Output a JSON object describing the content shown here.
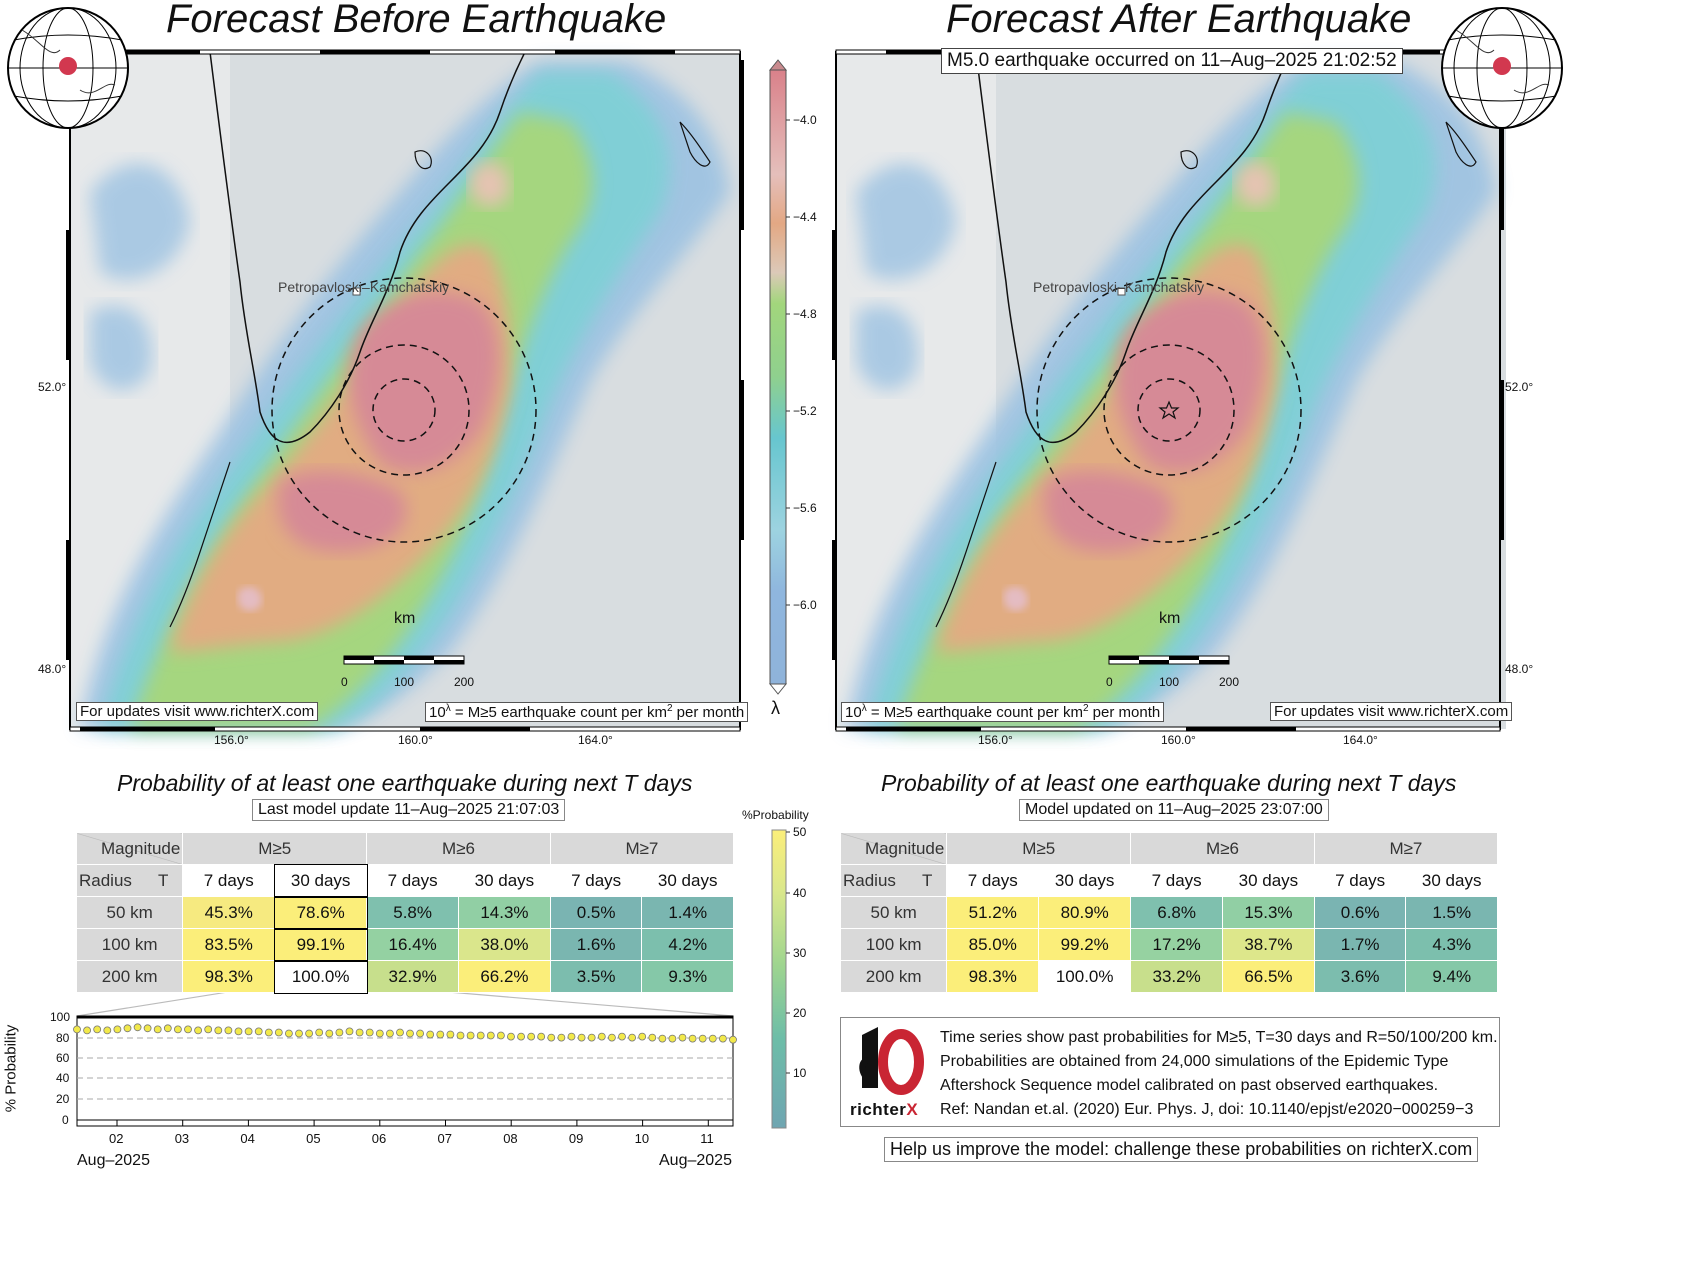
{
  "left": {
    "title": "Forecast Before Earthquake",
    "updates": "For updates visit www.richterX.com",
    "legend_note": "10λ = M≥5 earthquake count per km2 per month",
    "legend_base": "10",
    "legend_sup": "λ",
    "legend_rest_a": " = M≥5 earthquake count per km",
    "legend_sup2": "2",
    "legend_rest_b": " per month",
    "city": "Petropavloski–Kamchatskiy",
    "km_label": "km",
    "scale_ticks": [
      "0",
      "100",
      "200"
    ],
    "lat_ticks": [
      "52.0°",
      "48.0°"
    ],
    "lon_ticks": [
      "156.0°",
      "160.0°",
      "164.0°"
    ],
    "prob_title": "Probability of at least one earthquake during next T days",
    "prob_subtitle": "Last model update 11–Aug–2025 21:07:03"
  },
  "right": {
    "title": "Forecast After Earthquake",
    "event": "M5.0 earthquake occurred on 11–Aug–2025 21:02:52",
    "updates": "For updates visit www.richterX.com",
    "city": "Petropavloski–Kamchatskiy",
    "km_label": "km",
    "scale_ticks": [
      "0",
      "100",
      "200"
    ],
    "lat_ticks": [
      "52.0°",
      "48.0°"
    ],
    "lon_ticks": [
      "156.0°",
      "160.0°",
      "164.0°"
    ],
    "prob_title": "Probability of at least one earthquake during next T days",
    "prob_subtitle": "Model updated on 11–Aug–2025 23:07:00"
  },
  "colorbar": {
    "ticks": [
      "−4.0",
      "−4.4",
      "−4.8",
      "−5.2",
      "−5.6",
      "−6.0"
    ],
    "label": "λ"
  },
  "prob_colorbar": {
    "label": "%Probability",
    "ticks": [
      "50",
      "40",
      "30",
      "20",
      "10"
    ]
  },
  "table_headers": {
    "magnitude": "Magnitude",
    "radius": "Radius",
    "t": "T",
    "mags": [
      "M≥5",
      "M≥6",
      "M≥7"
    ],
    "periods": [
      "7 days",
      "30 days",
      "7 days",
      "30 days",
      "7 days",
      "30 days"
    ],
    "radii": [
      "50 km",
      "100 km",
      "200 km"
    ]
  },
  "table_left": [
    [
      "45.3%",
      "78.6%",
      "5.8%",
      "14.3%",
      "0.5%",
      "1.4%"
    ],
    [
      "83.5%",
      "99.1%",
      "16.4%",
      "38.0%",
      "1.6%",
      "4.2%"
    ],
    [
      "98.3%",
      "100.0%",
      "32.9%",
      "66.2%",
      "3.5%",
      "9.3%"
    ]
  ],
  "table_right": [
    [
      "51.2%",
      "80.9%",
      "6.8%",
      "15.3%",
      "0.6%",
      "1.5%"
    ],
    [
      "85.0%",
      "99.2%",
      "17.2%",
      "38.7%",
      "1.7%",
      "4.3%"
    ],
    [
      "98.3%",
      "100.0%",
      "33.2%",
      "66.5%",
      "3.6%",
      "9.4%"
    ]
  ],
  "timeseries": {
    "ylabel": "% Probability",
    "yticks": [
      "100",
      "80",
      "60",
      "40",
      "20",
      "0"
    ],
    "xticks": [
      "02",
      "03",
      "04",
      "05",
      "06",
      "07",
      "08",
      "09",
      "10",
      "11"
    ],
    "start_label": "Aug–2025",
    "end_label": "Aug–2025",
    "values": [
      88,
      87,
      88,
      87,
      88,
      89,
      90,
      89,
      88,
      89,
      88,
      88,
      87,
      88,
      87,
      87,
      86,
      86,
      86,
      85,
      85,
      84,
      84,
      84,
      85,
      84,
      85,
      86,
      85,
      85,
      84,
      84,
      85,
      84,
      84,
      83,
      83,
      83,
      82,
      82,
      82,
      82,
      82,
      81,
      81,
      81,
      81,
      80,
      80,
      81,
      80,
      80,
      81,
      80,
      81,
      80,
      81,
      80,
      79,
      79,
      80,
      79,
      79,
      79,
      79,
      78
    ]
  },
  "credits": {
    "lines": [
      "Time series show past probabilities for M≥5, T=30 days and R=50/100/200 km.",
      "Probabilities are obtained from 24,000 simulations of the Epidemic Type",
      "Aftershock Sequence model calibrated on past observed earthquakes.",
      "Ref: Nandan et.al. (2020) Eur. Phys. J, doi: 10.1140/epjst/e2020−000259−3"
    ],
    "logo_text": "richterX",
    "help": "Help us improve the model: challenge these probabilities on richterX.com"
  }
}
